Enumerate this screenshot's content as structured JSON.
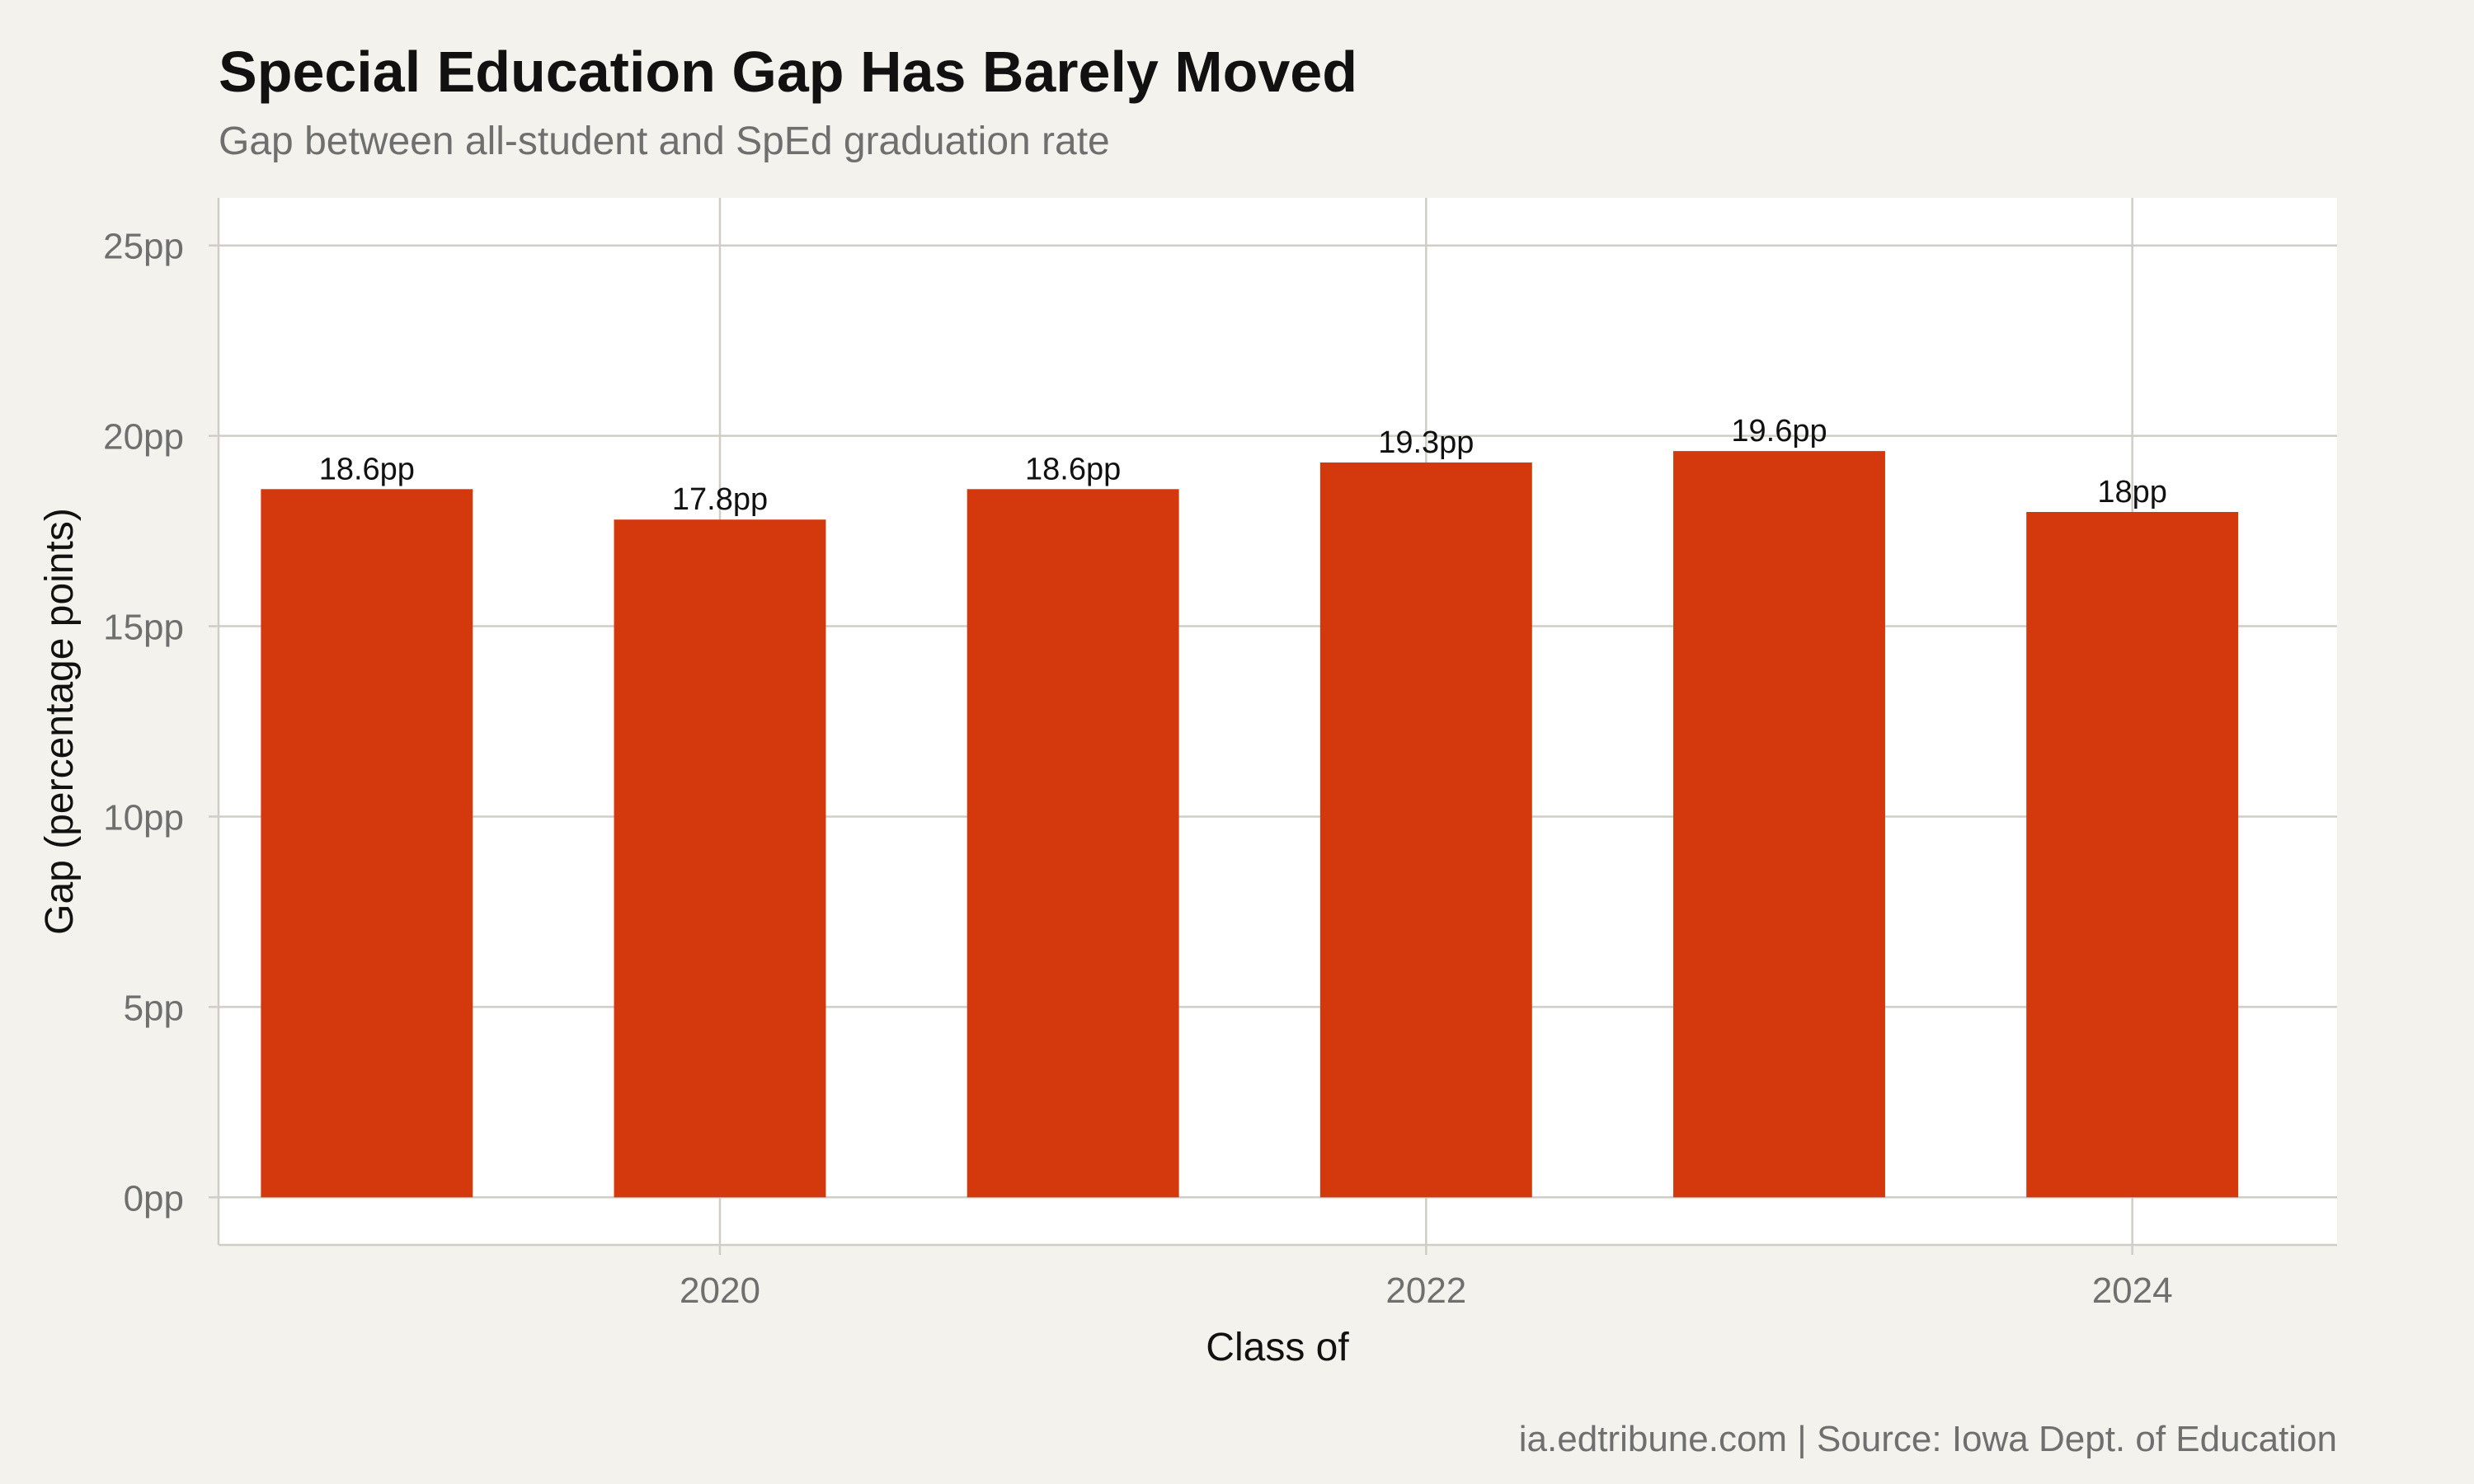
{
  "chart_data": {
    "type": "bar",
    "title": "Special Education Gap Has Barely Moved",
    "subtitle": "Gap between all-student and SpEd graduation rate",
    "xlabel": "Class of",
    "ylabel": "Gap (percentage points)",
    "caption": "ia.edtribune.com | Source: Iowa Dept. of Education",
    "x": [
      2019,
      2020,
      2021,
      2022,
      2023,
      2024
    ],
    "values": [
      18.6,
      17.8,
      18.6,
      19.3,
      19.6,
      18
    ],
    "data_labels": [
      "18.6pp",
      "17.8pp",
      "18.6pp",
      "19.3pp",
      "19.6pp",
      "18pp"
    ],
    "x_ticks": [
      2020,
      2022,
      2024
    ],
    "x_tick_labels": [
      "2020",
      "2022",
      "2024"
    ],
    "y_ticks": [
      0,
      5,
      10,
      15,
      20,
      25
    ],
    "y_tick_labels": [
      "0pp",
      "5pp",
      "10pp",
      "15pp",
      "20pp",
      "25pp"
    ],
    "xlim": [
      2018.58,
      2024.58
    ],
    "ylim": [
      -1.25,
      26.25
    ],
    "grid": true,
    "colors": {
      "bar": "#d4380d",
      "background": "#f4f2ed",
      "panel": "#ffffff",
      "grid": "#cfcdc6",
      "title": "#111111",
      "subtitle": "#6f6f6f",
      "tick": "#6f6f6f",
      "axis_title": "#111111",
      "data_label": "#111111",
      "caption": "#6f6f6f"
    }
  }
}
